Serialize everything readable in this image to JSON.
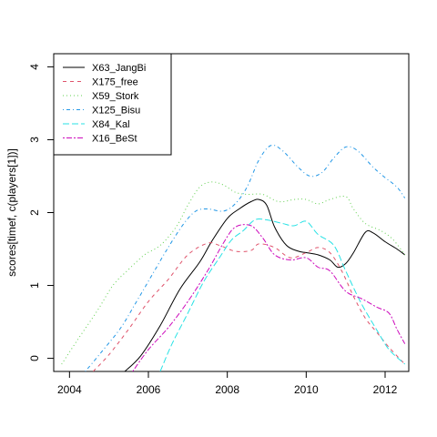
{
  "chart_data": {
    "type": "line",
    "title": "",
    "xlabel": "",
    "ylabel": "scores[timef, c(players[1])]",
    "xlim": [
      2003.6,
      2012.6
    ],
    "ylim": [
      -0.18,
      4.18
    ],
    "x_ticks": [
      2004,
      2006,
      2008,
      2010,
      2012
    ],
    "x_tick_labels": [
      "2004",
      "2006",
      "2008",
      "2010",
      "2012"
    ],
    "y_ticks": [
      0,
      1,
      2,
      3,
      4
    ],
    "y_tick_labels": [
      "0",
      "1",
      "2",
      "3",
      "4"
    ],
    "grid": false,
    "legend_position": "top-left",
    "series": [
      {
        "name": "X63_JangBi",
        "color": "#000000",
        "dash": "solid",
        "points": [
          [
            2005.4,
            -0.18
          ],
          [
            2005.8,
            0.03
          ],
          [
            2006.3,
            0.45
          ],
          [
            2006.8,
            0.95
          ],
          [
            2007.3,
            1.32
          ],
          [
            2007.6,
            1.6
          ],
          [
            2008.0,
            1.92
          ],
          [
            2008.3,
            2.05
          ],
          [
            2008.6,
            2.15
          ],
          [
            2008.8,
            2.18
          ],
          [
            2009.0,
            2.1
          ],
          [
            2009.2,
            1.8
          ],
          [
            2009.5,
            1.55
          ],
          [
            2009.8,
            1.47
          ],
          [
            2010.0,
            1.45
          ],
          [
            2010.3,
            1.42
          ],
          [
            2010.6,
            1.35
          ],
          [
            2010.8,
            1.25
          ],
          [
            2011.0,
            1.3
          ],
          [
            2011.2,
            1.45
          ],
          [
            2011.5,
            1.73
          ],
          [
            2011.7,
            1.72
          ],
          [
            2012.0,
            1.6
          ],
          [
            2012.3,
            1.5
          ],
          [
            2012.5,
            1.42
          ]
        ]
      },
      {
        "name": "X175_free",
        "color": "#DF536B",
        "dash": "dashed",
        "points": [
          [
            2004.6,
            -0.18
          ],
          [
            2005.0,
            0.05
          ],
          [
            2005.5,
            0.4
          ],
          [
            2006.0,
            0.78
          ],
          [
            2006.5,
            1.08
          ],
          [
            2007.0,
            1.42
          ],
          [
            2007.5,
            1.58
          ],
          [
            2007.8,
            1.55
          ],
          [
            2008.2,
            1.47
          ],
          [
            2008.6,
            1.48
          ],
          [
            2008.8,
            1.57
          ],
          [
            2009.2,
            1.52
          ],
          [
            2009.6,
            1.38
          ],
          [
            2010.0,
            1.45
          ],
          [
            2010.3,
            1.52
          ],
          [
            2010.6,
            1.45
          ],
          [
            2010.9,
            1.2
          ],
          [
            2011.2,
            0.85
          ],
          [
            2011.5,
            0.55
          ],
          [
            2011.8,
            0.35
          ],
          [
            2012.1,
            0.15
          ],
          [
            2012.5,
            -0.08
          ]
        ]
      },
      {
        "name": "X59_Stork",
        "color": "#61D04F",
        "dash": "dotted",
        "points": [
          [
            2003.8,
            -0.08
          ],
          [
            2004.2,
            0.25
          ],
          [
            2004.7,
            0.65
          ],
          [
            2005.1,
            1.0
          ],
          [
            2005.5,
            1.22
          ],
          [
            2005.9,
            1.42
          ],
          [
            2006.3,
            1.55
          ],
          [
            2006.7,
            1.8
          ],
          [
            2007.0,
            2.1
          ],
          [
            2007.3,
            2.35
          ],
          [
            2007.6,
            2.42
          ],
          [
            2007.9,
            2.38
          ],
          [
            2008.2,
            2.28
          ],
          [
            2008.5,
            2.25
          ],
          [
            2008.9,
            2.25
          ],
          [
            2009.3,
            2.15
          ],
          [
            2009.7,
            2.18
          ],
          [
            2010.0,
            2.18
          ],
          [
            2010.3,
            2.12
          ],
          [
            2010.6,
            2.18
          ],
          [
            2011.0,
            2.22
          ],
          [
            2011.2,
            2.05
          ],
          [
            2011.5,
            1.85
          ],
          [
            2011.9,
            1.75
          ],
          [
            2012.2,
            1.63
          ],
          [
            2012.5,
            1.42
          ]
        ]
      },
      {
        "name": "X125_Bisu",
        "color": "#2297E6",
        "dash": "dotdash",
        "points": [
          [
            2004.4,
            -0.18
          ],
          [
            2004.8,
            0.08
          ],
          [
            2005.3,
            0.42
          ],
          [
            2005.7,
            0.78
          ],
          [
            2006.1,
            1.15
          ],
          [
            2006.5,
            1.52
          ],
          [
            2006.9,
            1.85
          ],
          [
            2007.2,
            2.02
          ],
          [
            2007.5,
            2.05
          ],
          [
            2007.9,
            2.02
          ],
          [
            2008.2,
            2.12
          ],
          [
            2008.5,
            2.35
          ],
          [
            2008.8,
            2.72
          ],
          [
            2009.1,
            2.92
          ],
          [
            2009.4,
            2.85
          ],
          [
            2009.8,
            2.62
          ],
          [
            2010.1,
            2.5
          ],
          [
            2010.4,
            2.55
          ],
          [
            2010.7,
            2.75
          ],
          [
            2011.0,
            2.9
          ],
          [
            2011.3,
            2.85
          ],
          [
            2011.7,
            2.62
          ],
          [
            2012.0,
            2.48
          ],
          [
            2012.3,
            2.35
          ],
          [
            2012.5,
            2.2
          ]
        ]
      },
      {
        "name": "X84_Kal",
        "color": "#28E2E5",
        "dash": "longdash",
        "points": [
          [
            2006.3,
            -0.18
          ],
          [
            2006.6,
            0.2
          ],
          [
            2007.0,
            0.62
          ],
          [
            2007.4,
            1.05
          ],
          [
            2007.8,
            1.38
          ],
          [
            2008.1,
            1.62
          ],
          [
            2008.4,
            1.75
          ],
          [
            2008.7,
            1.9
          ],
          [
            2009.0,
            1.9
          ],
          [
            2009.4,
            1.85
          ],
          [
            2009.7,
            1.82
          ],
          [
            2010.0,
            1.88
          ],
          [
            2010.3,
            1.7
          ],
          [
            2010.7,
            1.55
          ],
          [
            2011.0,
            1.2
          ],
          [
            2011.4,
            0.75
          ],
          [
            2011.8,
            0.38
          ],
          [
            2012.1,
            0.12
          ],
          [
            2012.5,
            -0.08
          ]
        ]
      },
      {
        "name": "X16_BeSt",
        "color": "#CD0BBC",
        "dash": "twodash",
        "points": [
          [
            2005.6,
            -0.18
          ],
          [
            2006.0,
            0.12
          ],
          [
            2006.5,
            0.42
          ],
          [
            2007.0,
            0.78
          ],
          [
            2007.5,
            1.2
          ],
          [
            2007.9,
            1.58
          ],
          [
            2008.2,
            1.8
          ],
          [
            2008.6,
            1.82
          ],
          [
            2008.9,
            1.65
          ],
          [
            2009.2,
            1.42
          ],
          [
            2009.6,
            1.35
          ],
          [
            2010.0,
            1.38
          ],
          [
            2010.3,
            1.25
          ],
          [
            2010.6,
            1.2
          ],
          [
            2011.0,
            0.92
          ],
          [
            2011.4,
            0.82
          ],
          [
            2011.8,
            0.7
          ],
          [
            2012.1,
            0.62
          ],
          [
            2012.3,
            0.4
          ],
          [
            2012.5,
            0.2
          ]
        ]
      }
    ]
  }
}
